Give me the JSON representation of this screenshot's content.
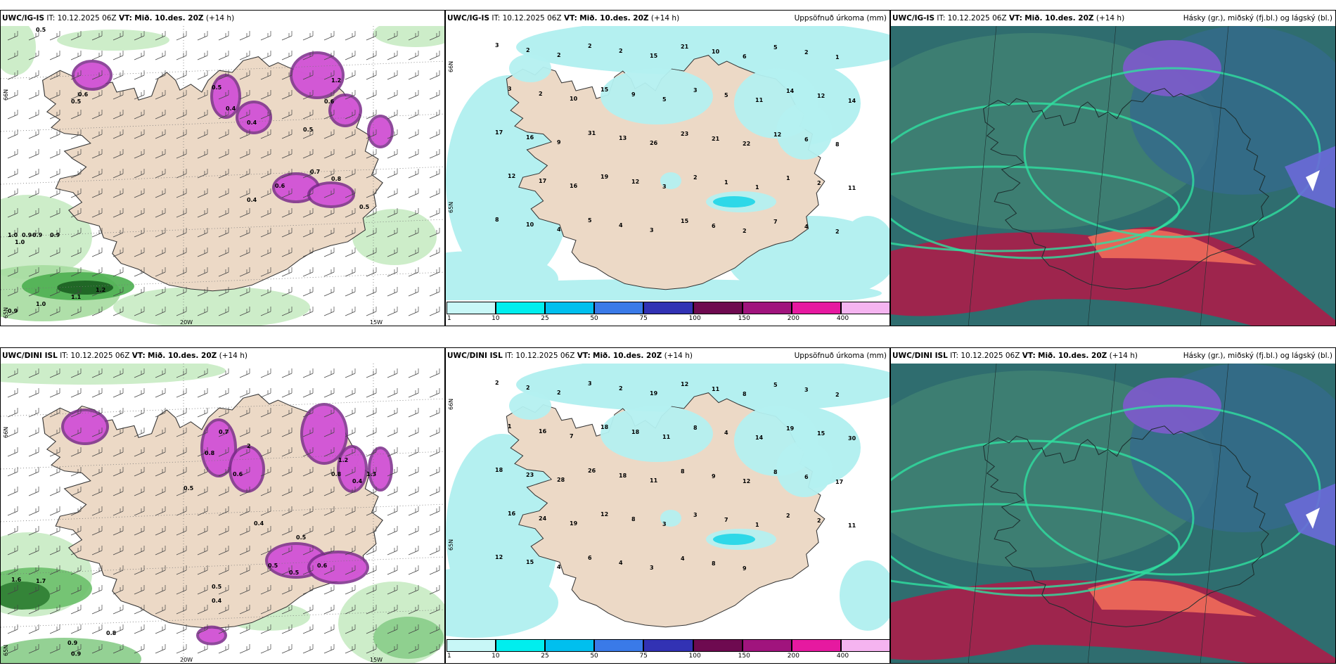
{
  "top": {
    "p1": {
      "model": "UWC/IG-IS",
      "it_label": "IT:",
      "it": "10.12.2025 06Z",
      "vt_label": "VT:",
      "vt": "Mið. 10.des. 20Z",
      "lead": "(+14 h)",
      "lon1": "20W",
      "lon2": "15W",
      "lat1": "66N",
      "lat2": "65N",
      "values": [
        "0.5",
        "1.0",
        "0.9",
        "0.9",
        "0.9",
        "1.1",
        "1.2",
        "1.0",
        "0.9",
        "0.6",
        "0.5",
        "0.5",
        "0.4",
        "0.4",
        "1.2",
        "0.6",
        "0.5",
        "0.7",
        "0.8",
        "0.6",
        "0.4",
        "1.0",
        "0.5"
      ]
    },
    "p2": {
      "model": "UWC/IG-IS",
      "it_label": "IT:",
      "it": "10.12.2025 06Z",
      "vt_label": "VT:",
      "vt": "Mið. 10.des. 20Z",
      "lead": "(+14 h)",
      "title": "Uppsöfnuð úrkoma (mm)",
      "lat": "66N",
      "lat2": "65N",
      "values": [
        "3",
        "2",
        "2",
        "2",
        "2",
        "15",
        "21",
        "10",
        "6",
        "5",
        "2",
        "1",
        "3",
        "2",
        "10",
        "15",
        "9",
        "5",
        "3",
        "5",
        "11",
        "14",
        "12",
        "14",
        "17",
        "16",
        "9",
        "31",
        "13",
        "26",
        "23",
        "21",
        "22",
        "12",
        "6",
        "8",
        "12",
        "17",
        "16",
        "19",
        "12",
        "3",
        "2",
        "1",
        "1",
        "1",
        "2",
        "11",
        "8",
        "10",
        "4",
        "5",
        "4",
        "3",
        "15",
        "6",
        "2",
        "7",
        "4",
        "2"
      ]
    },
    "p3": {
      "model": "UWC/IG-IS",
      "it_label": "IT:",
      "it": "10.12.2025 06Z",
      "vt_label": "VT:",
      "vt": "Mið. 10.des. 20Z",
      "lead": "(+14 h)",
      "title": "Hásky (gr.), miðský (fj.bl.) og lágský (bl.)"
    }
  },
  "bottom": {
    "p1": {
      "model": "UWC/DINI ISL",
      "it_label": "IT:",
      "it": "10.12.2025 06Z",
      "vt_label": "VT:",
      "vt": "Mið. 10.des. 20Z",
      "lead": "(+14 h)",
      "lon1": "20W",
      "lon2": "15W",
      "lat1": "66N",
      "lat2": "65N",
      "values": [
        "1.6",
        "1.7",
        "0.9",
        "0.8",
        "0.9",
        "0.4",
        "0.5",
        "0.6",
        "0.4",
        "0.5",
        "0.6",
        "1.2",
        "0.8",
        "0.5",
        "0.5",
        "0.4",
        "1.3",
        "2",
        "0.8",
        "0.7",
        "0.5"
      ]
    },
    "p2": {
      "model": "UWC/DINI ISL",
      "it_label": "IT:",
      "it": "10.12.2025 06Z",
      "vt_label": "VT:",
      "vt": "Mið. 10.des. 20Z",
      "lead": "(+14 h)",
      "title": "Uppsöfnuð úrkoma (mm)",
      "lat": "66N",
      "lat2": "65N",
      "values": [
        "2",
        "2",
        "2",
        "3",
        "2",
        "19",
        "12",
        "11",
        "8",
        "5",
        "3",
        "2",
        "1",
        "16",
        "7",
        "18",
        "18",
        "11",
        "8",
        "4",
        "14",
        "19",
        "15",
        "30",
        "18",
        "23",
        "28",
        "26",
        "18",
        "11",
        "8",
        "9",
        "12",
        "8",
        "6",
        "17",
        "16",
        "24",
        "19",
        "12",
        "8",
        "3",
        "3",
        "7",
        "1",
        "2",
        "2",
        "11",
        "12",
        "15",
        "4",
        "6",
        "4",
        "3",
        "4",
        "8",
        "9"
      ]
    },
    "p3": {
      "model": "UWC/DINI ISL",
      "it_label": "IT:",
      "it": "10.12.2025 06Z",
      "vt_label": "VT:",
      "vt": "Mið. 10.des. 20Z",
      "lead": "(+14 h)",
      "title": "Hásky (gr.), miðský (fj.bl.) og lágský (bl.)"
    }
  },
  "colorbar": {
    "ticks": [
      "1",
      "10",
      "25",
      "50",
      "75",
      "100",
      "150",
      "200",
      "400"
    ],
    "colors": [
      "#c8f7f7",
      "#00eeee",
      "#00bfee",
      "#3a7ae8",
      "#3232b4",
      "#6e0a50",
      "#a0147d",
      "#e619a0",
      "#f5b4f0"
    ]
  },
  "colors": {
    "land": "#ecd9c6",
    "sea": "#ffffff",
    "precip": "#b4f0f0",
    "green_light": "#c8ebc3",
    "green_dark": "#2e7d32",
    "pink": "#d65ad8",
    "purple": "#7a2a8a",
    "cloud_dark": "#2f5d5f",
    "cloud_red": "#a8204a"
  }
}
